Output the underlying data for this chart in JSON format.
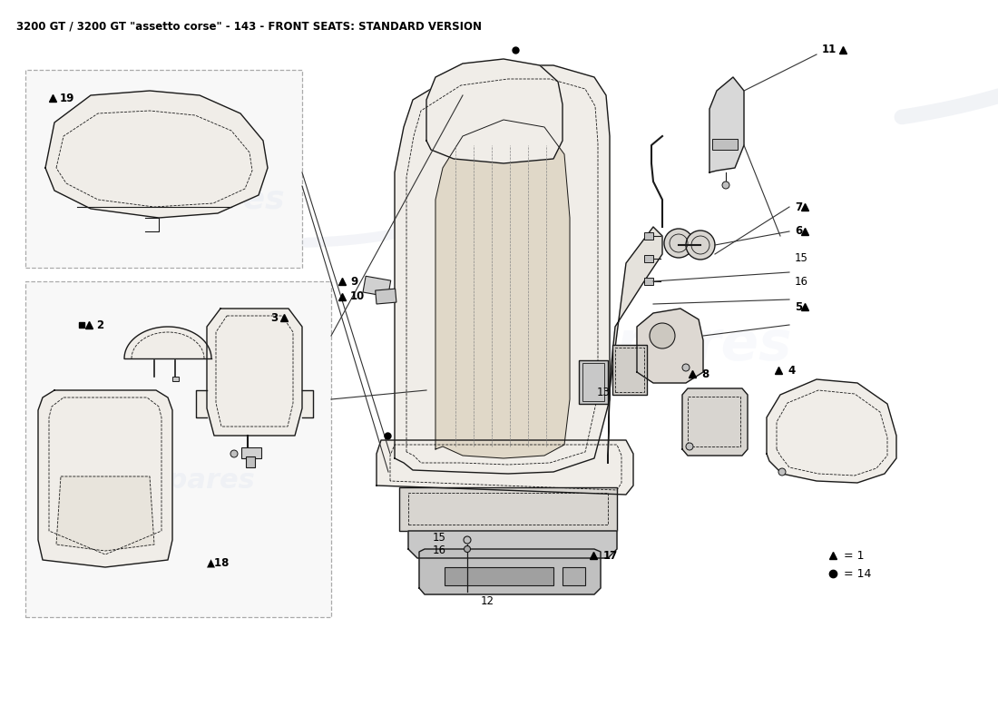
{
  "title": "3200 GT / 3200 GT \"assetto corse\" - 143 - FRONT SEATS: STANDARD VERSION",
  "title_fontsize": 8.5,
  "bg": "#ffffff",
  "watermark": "eurospares",
  "wm_color": "#c8d4e8",
  "legend_tri": "= 1",
  "legend_dot": "= 14"
}
